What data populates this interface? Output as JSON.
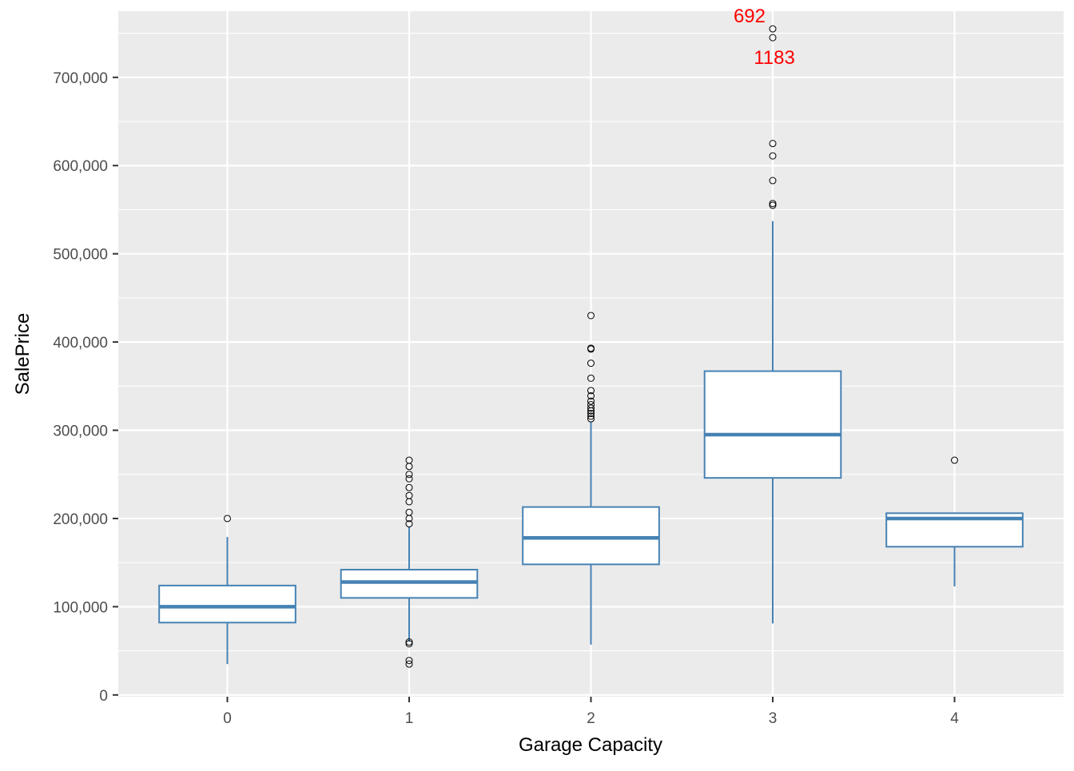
{
  "chart_data": {
    "type": "boxplot",
    "xlabel": "Garage Capacity",
    "ylabel": "SalePrice",
    "ylim": [
      -2000,
      775000
    ],
    "y_ticks": [
      0,
      100000,
      200000,
      300000,
      400000,
      500000,
      600000,
      700000
    ],
    "y_tick_labels": [
      "0",
      "100,000",
      "200,000",
      "300,000",
      "400,000",
      "500,000",
      "600,000",
      "700,000"
    ],
    "categories": [
      "0",
      "1",
      "2",
      "3",
      "4"
    ],
    "boxes": [
      {
        "category": "0",
        "whisker_low": 35000,
        "q1": 82000,
        "median": 100000,
        "q3": 124000,
        "whisker_high": 179000,
        "outliers": [
          200000
        ]
      },
      {
        "category": "1",
        "whisker_low": 60500,
        "q1": 110000,
        "median": 128000,
        "q3": 142000,
        "whisker_high": 190000,
        "outliers": [
          35000,
          39000,
          58000,
          60000,
          194000,
          200000,
          207000,
          219000,
          226000,
          235000,
          245000,
          250000,
          259000,
          266000
        ]
      },
      {
        "category": "2",
        "whisker_low": 57000,
        "q1": 148000,
        "median": 178000,
        "q3": 213000,
        "whisker_high": 310000,
        "outliers": [
          313000,
          316000,
          319000,
          322000,
          325000,
          329000,
          333000,
          339000,
          345000,
          359000,
          376000,
          392000,
          393000,
          430000
        ]
      },
      {
        "category": "3",
        "whisker_low": 81000,
        "q1": 246000,
        "median": 295000,
        "q3": 367000,
        "whisker_high": 537000,
        "outliers": [
          555000,
          557000,
          583000,
          611000,
          625000,
          745000,
          755000
        ]
      },
      {
        "category": "4",
        "whisker_low": 123000,
        "q1": 168000,
        "median": 200000,
        "q3": 206000,
        "whisker_high": 206000,
        "outliers": [
          266000
        ]
      }
    ],
    "annotations": [
      {
        "text": "692",
        "category": "3",
        "y": 755000,
        "color": "#ff0000",
        "anchor": "end"
      },
      {
        "text": "1183",
        "category": "3",
        "y": 745000,
        "color": "#ff0000",
        "anchor": "start"
      }
    ],
    "colors": {
      "panel": "#ebebeb",
      "grid": "#ffffff",
      "box_stroke": "#4682b4",
      "box_fill": "#ffffff",
      "outlier_stroke": "#000000"
    },
    "grid": true,
    "legend": "none"
  }
}
